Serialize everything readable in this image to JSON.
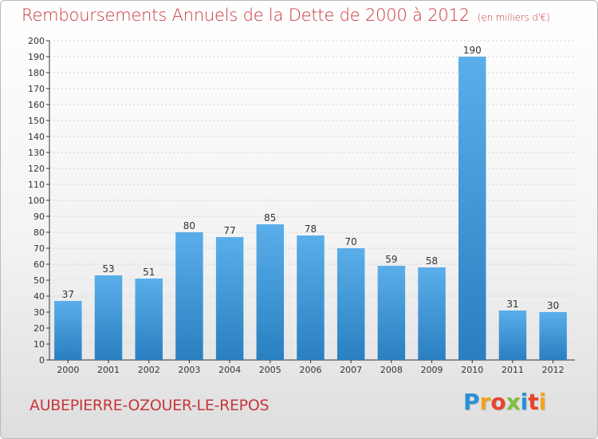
{
  "header": {
    "title": "Remboursements Annuels de la Dette de 2000 à 2012",
    "subtitle": "(en milliers d'€)"
  },
  "footer": {
    "commune": "AUBEPIERRE-OZOUER-LE-REPOS",
    "logo": "Proxiti"
  },
  "colors": {
    "title": "#c8373b",
    "bar_light": "#5aaeea",
    "bar_dark": "#2a7fc1",
    "axis": "#333333",
    "grid": "#d0d0d0"
  },
  "chart_data": {
    "type": "bar",
    "title": "Remboursements Annuels de la Dette de 2000 à 2012",
    "subtitle": "(en milliers d'€)",
    "xlabel": "",
    "ylabel": "",
    "categories": [
      "2000",
      "2001",
      "2002",
      "2003",
      "2004",
      "2005",
      "2006",
      "2007",
      "2008",
      "2009",
      "2010",
      "2011",
      "2012"
    ],
    "values": [
      37,
      53,
      51,
      80,
      77,
      85,
      78,
      70,
      59,
      58,
      190,
      31,
      30
    ],
    "ylim": [
      0,
      200
    ],
    "ytick_step": 10,
    "grid": true,
    "data_labels": true
  }
}
